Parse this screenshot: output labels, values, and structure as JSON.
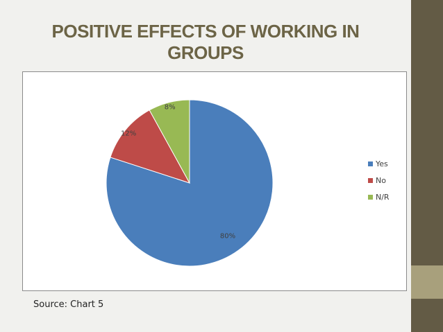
{
  "slide": {
    "title": "POSITIVE EFFECTS OF WORKING IN GROUPS",
    "source": "Source: Chart  5"
  },
  "colors": {
    "background": "#f1f1ee",
    "sidebar": "#635b45",
    "sidebar_accent": "#a8a07c",
    "title": "#6c6446"
  },
  "chart_data": {
    "type": "pie",
    "categories": [
      "Yes",
      "No",
      "N/R"
    ],
    "values": [
      80,
      12,
      8
    ],
    "labels": [
      "80%",
      "12%",
      "8%"
    ],
    "colors": [
      "#4a7ebb",
      "#be4b48",
      "#98b954"
    ],
    "legend_position": "right"
  }
}
